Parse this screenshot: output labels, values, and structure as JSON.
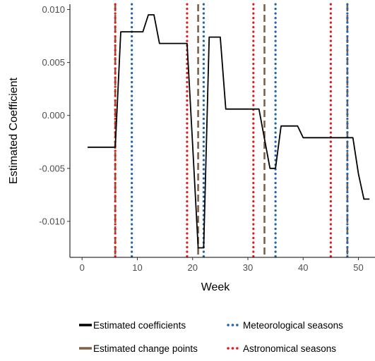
{
  "chart_data": {
    "type": "line",
    "xlabel": "Week",
    "ylabel": "Estimated Coefficient",
    "xlim": [
      -2.2,
      53
    ],
    "ylim": [
      -0.0134,
      0.0105
    ],
    "x_ticks": [
      0,
      10,
      20,
      30,
      40,
      50
    ],
    "x_tick_labels": [
      "0",
      "10",
      "20",
      "30",
      "40",
      "50"
    ],
    "y_ticks": [
      0.01,
      0.005,
      0.0,
      -0.005,
      -0.01
    ],
    "y_tick_labels": [
      "0.010",
      "0.005",
      "0.000",
      "-0.005",
      "-0.010"
    ],
    "grid": false,
    "legend_position": "bottom",
    "series": [
      {
        "name": "Estimated coefficients",
        "style": "solid",
        "color": "#000000",
        "x": [
          1,
          6,
          7,
          8,
          9,
          10,
          11,
          12,
          13,
          14,
          15,
          16,
          17,
          18,
          19,
          20,
          21,
          22,
          23,
          24,
          25,
          26,
          27,
          28,
          29,
          30,
          31,
          32,
          33,
          34,
          35,
          36,
          37,
          38,
          39,
          40,
          41,
          42,
          43,
          44,
          45,
          46,
          47,
          48,
          49,
          50,
          51,
          52
        ],
        "y": [
          -0.003,
          -0.003,
          0.0079,
          0.0079,
          0.0079,
          0.0079,
          0.0079,
          0.0095,
          0.0095,
          0.0068,
          0.0068,
          0.0068,
          0.0068,
          0.0068,
          0.0068,
          -0.0027,
          -0.0125,
          -0.0125,
          0.0074,
          0.0074,
          0.0074,
          0.0006,
          0.0006,
          0.0006,
          0.0006,
          0.0006,
          0.0006,
          0.0006,
          -0.0022,
          -0.005,
          -0.005,
          -0.001,
          -0.001,
          -0.001,
          -0.001,
          -0.0021,
          -0.0021,
          -0.0021,
          -0.0021,
          -0.0021,
          -0.0021,
          -0.0021,
          -0.0021,
          -0.0021,
          -0.0021,
          -0.0055,
          -0.0079,
          -0.0079
        ]
      },
      {
        "name": "Estimated change points",
        "style": "dashed-vline",
        "color": "#7f6048",
        "x": [
          6,
          21,
          33,
          48
        ]
      },
      {
        "name": "Meteorological seasons",
        "style": "dotted-vline",
        "color": "#2166ac",
        "x": [
          9,
          22,
          35,
          48
        ]
      },
      {
        "name": "Astronomical seasons",
        "style": "dotted-vline",
        "color": "#e41a1c",
        "x": [
          6,
          19,
          31,
          45
        ]
      }
    ],
    "legend": [
      {
        "label": "Estimated coefficients",
        "style": "solid",
        "color": "#000000"
      },
      {
        "label": "Meteorological seasons",
        "style": "dotted",
        "color": "#2166ac"
      },
      {
        "label": "Estimated change points",
        "style": "solid",
        "color": "#7f6048"
      },
      {
        "label": "Astronomical seasons",
        "style": "dotted",
        "color": "#e41a1c"
      }
    ]
  }
}
